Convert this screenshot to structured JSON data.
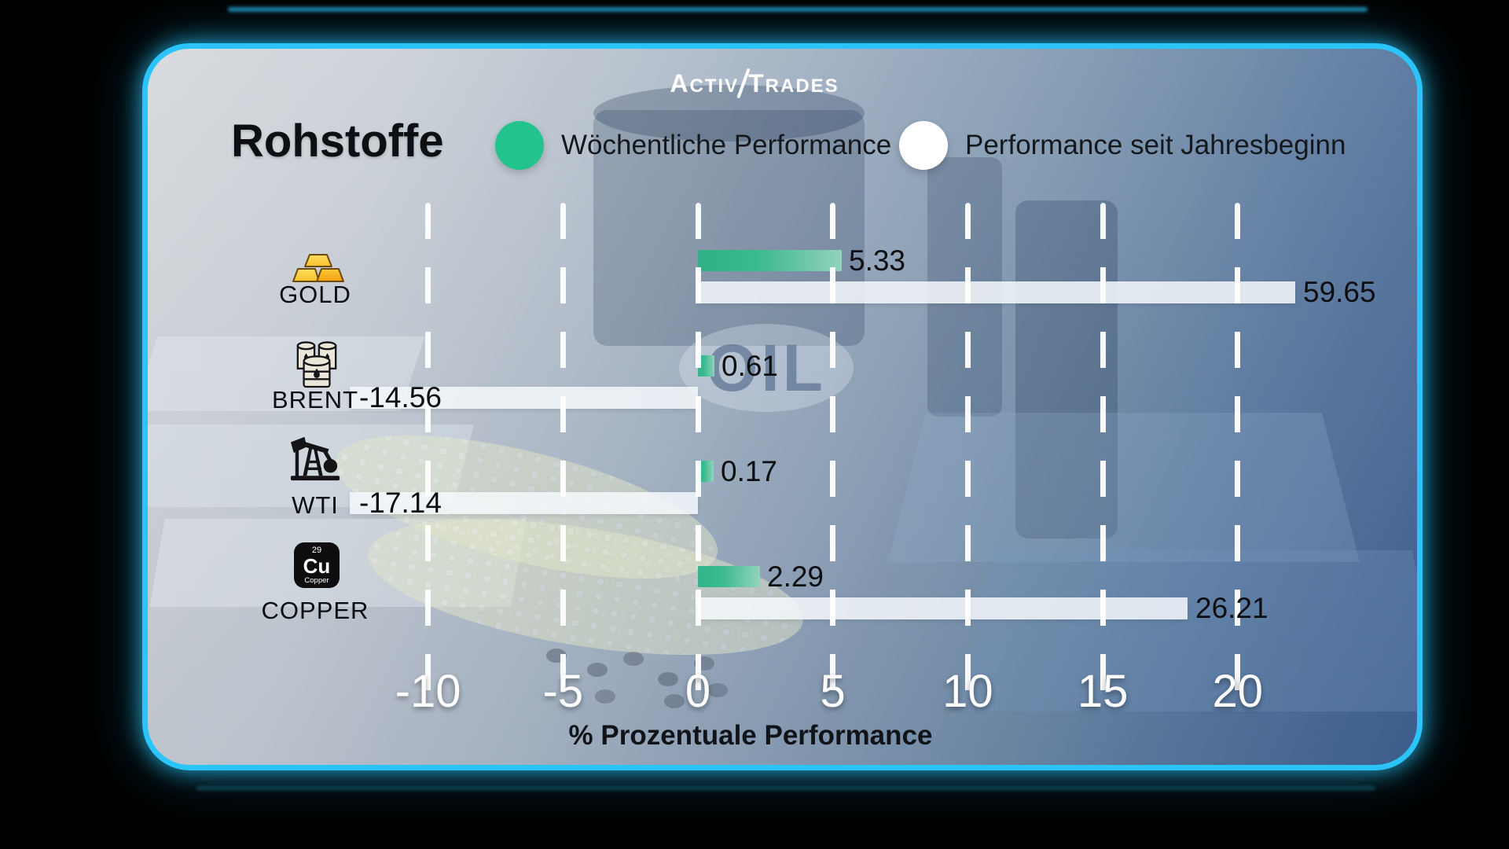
{
  "brand": {
    "part1": "Activ",
    "part2": "Trades"
  },
  "title": "Rohstoffe",
  "legend": {
    "weekly": {
      "label": "Wöchentliche Performance",
      "color": "#22c38c"
    },
    "ytd": {
      "label": "Performance seit Jahresbeginn",
      "color": "#ffffff"
    }
  },
  "watermark": "OIL",
  "axis": {
    "title": "% Prozentuale Performance"
  },
  "copper_tile": {
    "number": "29",
    "symbol": "Cu",
    "name": "Copper"
  },
  "colors": {
    "panel_border": "#2ac4f8",
    "green_bar": "#22c38c",
    "white_bar": "#f2f6fa",
    "outer_background": "#000000"
  },
  "chart_data": {
    "type": "bar",
    "orientation": "horizontal",
    "title": "Rohstoffe",
    "xlabel": "% Prozentuale Performance",
    "xticks": [
      -10,
      -5,
      0,
      5,
      10,
      15,
      20
    ],
    "xlim": [
      -13,
      22.5
    ],
    "grid": "dashed-white-vertical",
    "legend_position": "top",
    "categories": [
      "GOLD",
      "BRENT",
      "WTI",
      "COPPER"
    ],
    "series": [
      {
        "name": "Wöchentliche Performance",
        "color": "#22c38c",
        "values": [
          5.33,
          0.61,
          0.17,
          2.29
        ]
      },
      {
        "name": "Performance seit Jahresbeginn",
        "color": "#ffffff",
        "values": [
          59.65,
          -14.56,
          -17.14,
          26.21
        ]
      }
    ],
    "rows": [
      {
        "label": "GOLD",
        "icon": "gold-bars-icon",
        "weekly": 5.33,
        "weekly_label": "5.33",
        "ytd": 59.65,
        "ytd_label": "59.65"
      },
      {
        "label": "BRENT",
        "icon": "oil-barrels-icon",
        "weekly": 0.61,
        "weekly_label": "0.61",
        "ytd": -14.56,
        "ytd_label": "-14.56"
      },
      {
        "label": "WTI",
        "icon": "oil-pump-jack-icon",
        "weekly": 0.17,
        "weekly_label": "0.17",
        "ytd": -17.14,
        "ytd_label": "-17.14"
      },
      {
        "label": "COPPER",
        "icon": "copper-element-icon",
        "weekly": 2.29,
        "weekly_label": "2.29",
        "ytd": 26.21,
        "ytd_label": "26.21"
      }
    ]
  }
}
